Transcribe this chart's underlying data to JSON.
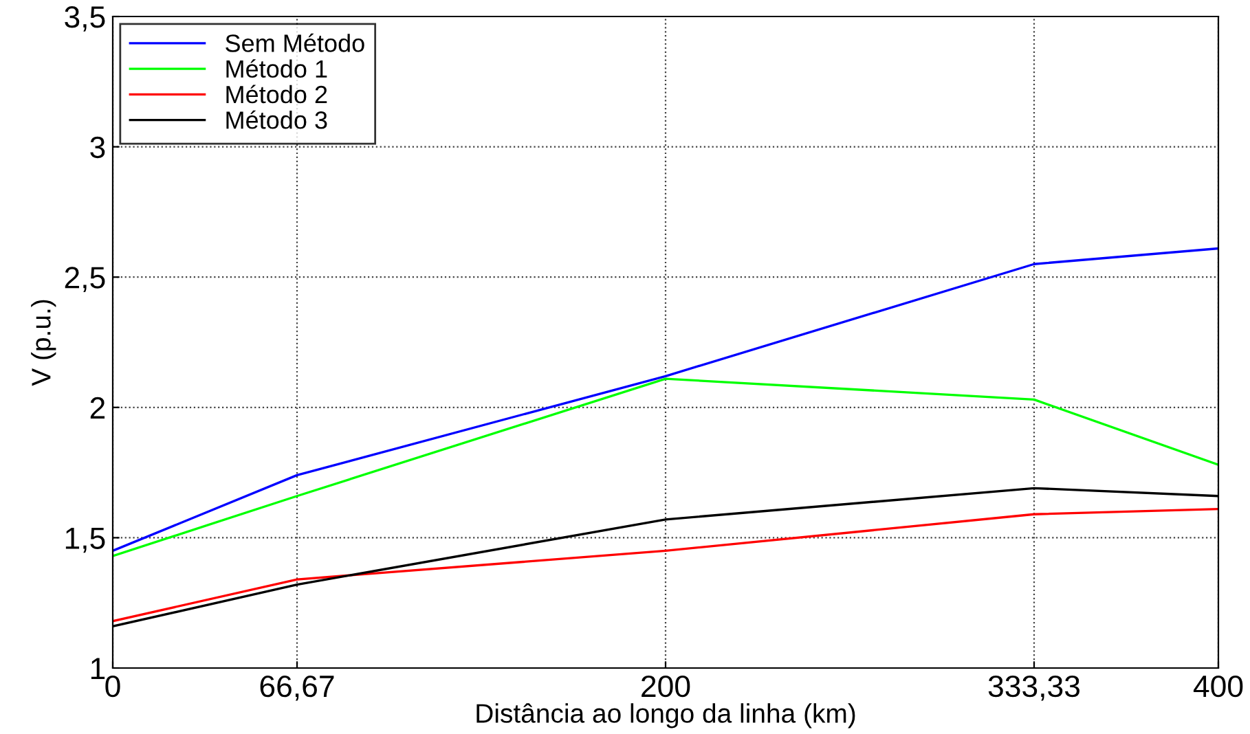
{
  "chart_data": {
    "type": "line",
    "xlabel": "Distância ao longo da linha (km)",
    "ylabel": "V (p.u.)",
    "x": [
      0,
      66.67,
      200,
      333.33,
      400
    ],
    "series": [
      {
        "name": "Sem Método",
        "color": "#0000ff",
        "values": [
          1.45,
          1.74,
          2.12,
          2.55,
          2.61
        ]
      },
      {
        "name": "Método 1",
        "color": "#00ff00",
        "values": [
          1.43,
          1.66,
          2.11,
          2.03,
          1.78
        ]
      },
      {
        "name": "Método 2",
        "color": "#ff0000",
        "values": [
          1.18,
          1.34,
          1.45,
          1.59,
          1.61
        ]
      },
      {
        "name": "Método 3",
        "color": "#000000",
        "values": [
          1.16,
          1.32,
          1.57,
          1.69,
          1.66
        ]
      }
    ],
    "xlim": [
      0,
      400
    ],
    "xticks": [
      0,
      {
        "value": 66.67,
        "label": "66,67"
      },
      200,
      {
        "value": 333.33,
        "label": "333,33"
      },
      400
    ],
    "ylim": [
      1,
      3.5
    ],
    "yticks": [
      1,
      {
        "value": 1.5,
        "label": "1,5"
      },
      2,
      {
        "value": 2.5,
        "label": "2,5"
      },
      3,
      {
        "value": 3.5,
        "label": "3,5"
      }
    ],
    "grid": true,
    "legend": "top left",
    "marker": "none",
    "line_style": "solid"
  }
}
